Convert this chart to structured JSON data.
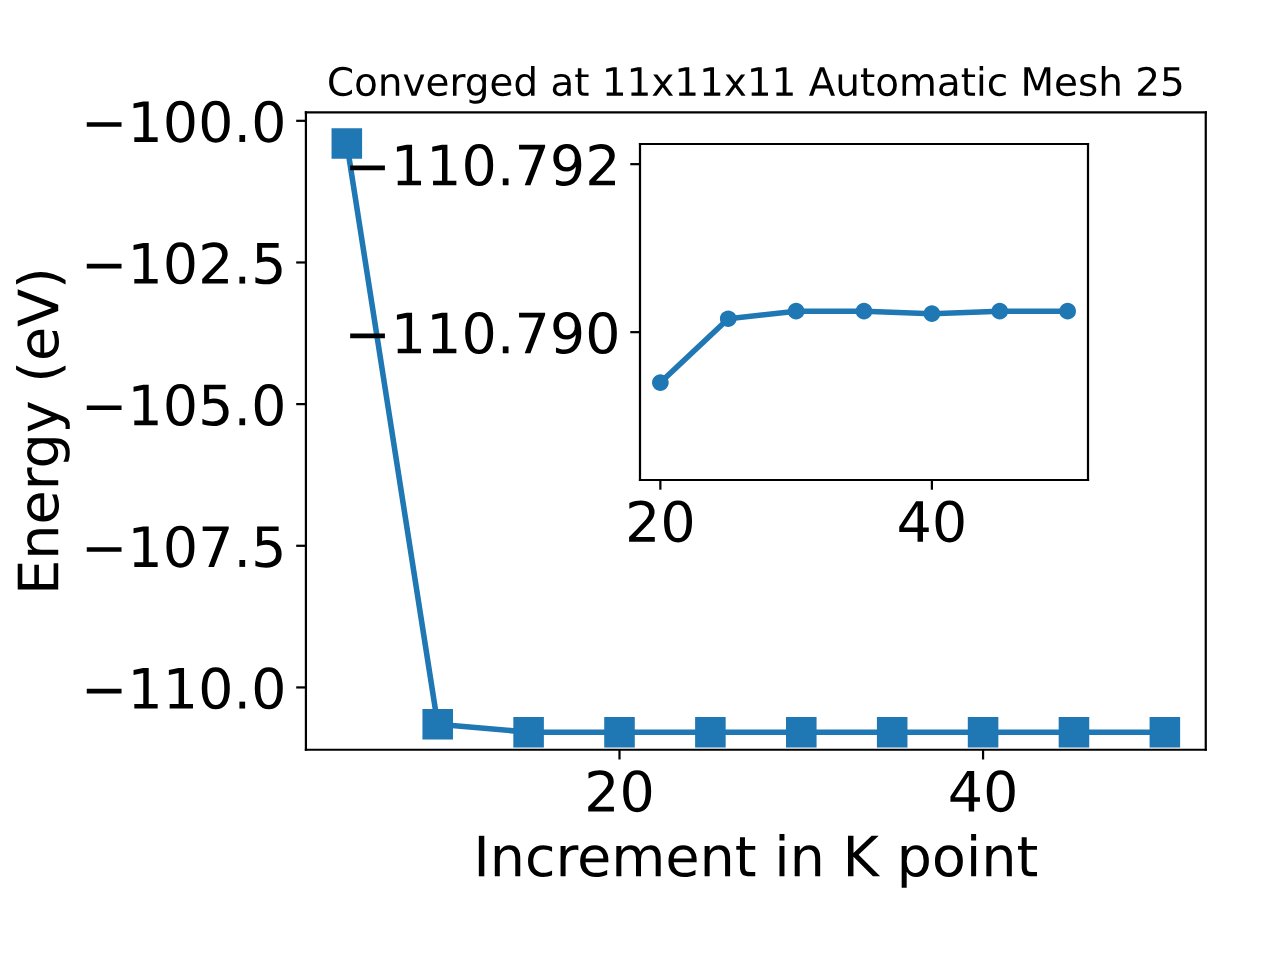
{
  "chart_data": [
    {
      "type": "line",
      "title": "Converged at 11x11x11 Automatic Mesh 25",
      "xlabel": "Increment in K point",
      "ylabel": "Energy (eV)",
      "x": [
        5,
        10,
        15,
        20,
        25,
        30,
        35,
        40,
        45,
        50
      ],
      "series": [
        {
          "color": "#1f77b4",
          "values": [
            -100.4,
            -110.65,
            -110.79,
            -110.79,
            -110.79,
            -110.79,
            -110.79,
            -110.79,
            -110.79,
            -110.79
          ]
        }
      ],
      "marker": "square",
      "line_style": "solid",
      "grid": false,
      "xlim": [
        2.75,
        52.25
      ],
      "xticks": [
        20,
        40
      ],
      "ylim": [
        -111.1,
        -99.85
      ],
      "yticks": [
        {
          "value": -110,
          "label": "−110.0"
        },
        {
          "value": -107.5,
          "label": "−107.5"
        },
        {
          "value": -105,
          "label": "−105.0"
        },
        {
          "value": -102.5,
          "label": "−102.5"
        },
        {
          "value": -100,
          "label": "−100.0"
        }
      ]
    },
    {
      "type": "line",
      "x": [
        20,
        25,
        30,
        35,
        40,
        45,
        50
      ],
      "series": [
        {
          "color": "#1f77b4",
          "values": [
            -110.7894,
            -110.79016,
            -110.79025,
            -110.79025,
            -110.79022,
            -110.79025,
            -110.79025
          ]
        }
      ],
      "marker": "circle",
      "line_style": "solid",
      "grid": false,
      "xlim": [
        18.5,
        51.5
      ],
      "xticks": [
        20,
        40
      ],
      "ylim": [
        -110.78824,
        -110.79224
      ],
      "yticks": [
        {
          "value": -110.79,
          "label": "−110.790"
        },
        {
          "value": -110.792,
          "label": "−110.792"
        }
      ]
    }
  ]
}
